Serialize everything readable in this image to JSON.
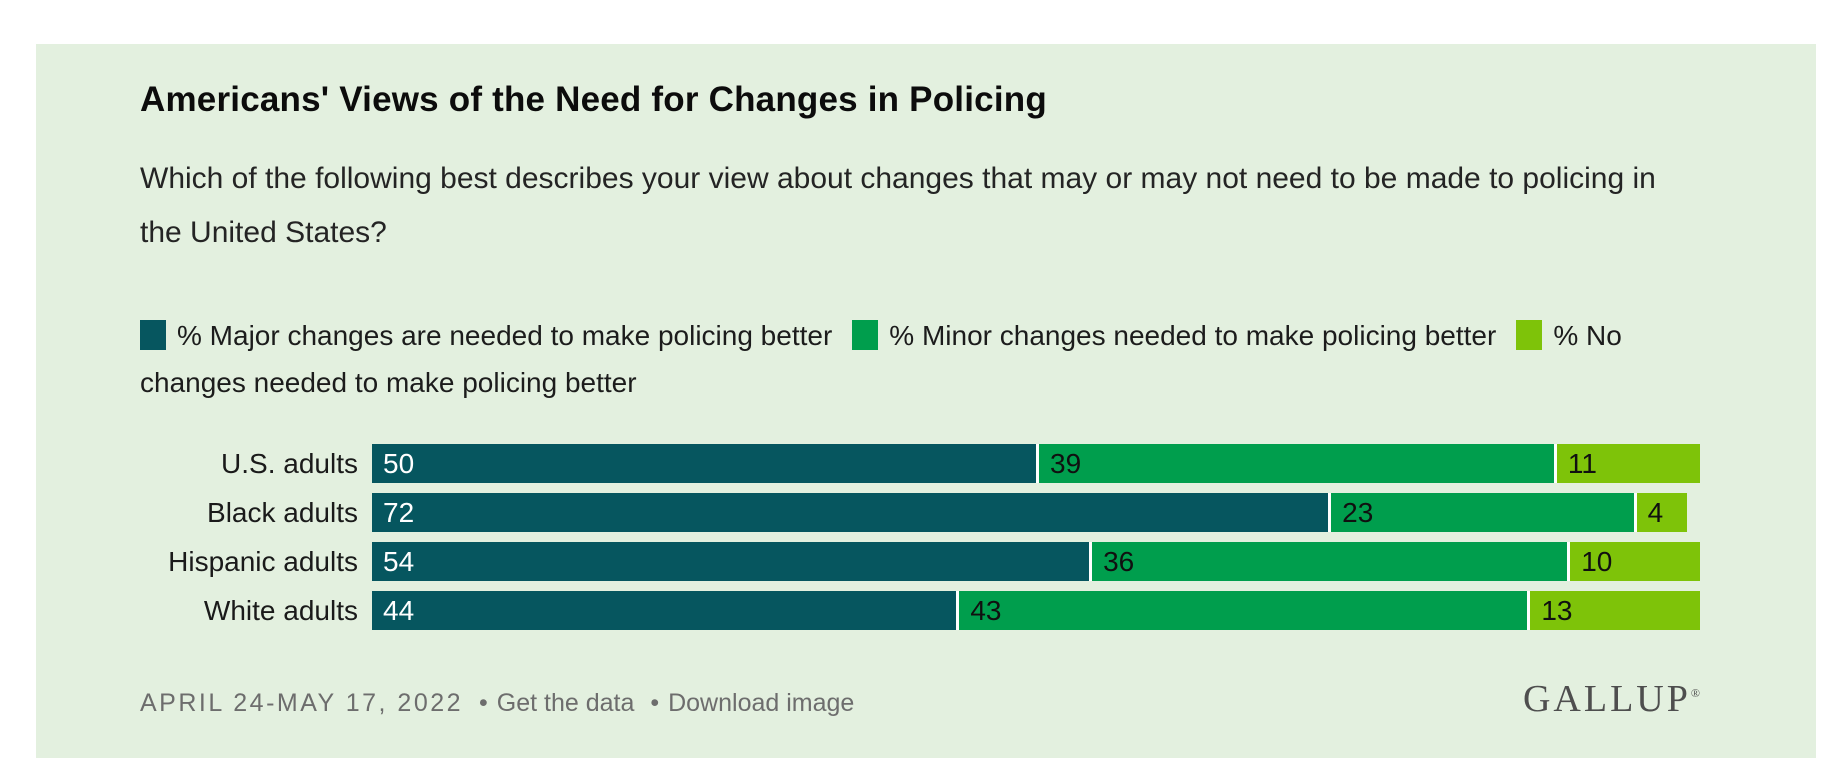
{
  "window": {
    "background": "#ffffff",
    "card_background": "#e3f0df"
  },
  "header": {
    "title": "Americans' Views of the Need for Changes in Policing",
    "subtitle": "Which of the following best describes your view about changes that may or may not need to be made to policing in the United States?"
  },
  "legend": {
    "items": [
      {
        "key": "major",
        "label": "% Major changes are needed to make policing better",
        "color": "#06565f"
      },
      {
        "key": "minor",
        "label": "% Minor changes needed to make policing better",
        "color": "#009e4d"
      },
      {
        "key": "none",
        "label": "% No changes needed to make policing better",
        "color": "#7ec309"
      }
    ]
  },
  "chart_data": {
    "type": "bar",
    "orientation": "horizontal",
    "stacked": true,
    "unit": "%",
    "xlim": [
      0,
      100
    ],
    "grid": false,
    "legend_position": "top",
    "value_labels": "inside-left",
    "categories": [
      "U.S. adults",
      "Black adults",
      "Hispanic adults",
      "White adults"
    ],
    "series": [
      {
        "key": "major",
        "name": "% Major changes are needed to make policing better",
        "color": "#06565f",
        "text_color": "#ffffff",
        "values": [
          50,
          72,
          54,
          44
        ]
      },
      {
        "key": "minor",
        "name": "% Minor changes needed to make policing better",
        "color": "#009e4d",
        "text_color": "#111111",
        "values": [
          39,
          23,
          36,
          43
        ]
      },
      {
        "key": "none",
        "name": "% No changes needed to make policing better",
        "color": "#7ec309",
        "text_color": "#111111",
        "values": [
          11,
          4,
          10,
          13
        ]
      }
    ]
  },
  "footer": {
    "date": "APRIL 24-MAY 17, 2022",
    "separator": "•",
    "links": [
      {
        "label": "Get the data"
      },
      {
        "label": "Download image"
      }
    ],
    "logo": "GALLUP",
    "logo_mark": "®"
  }
}
